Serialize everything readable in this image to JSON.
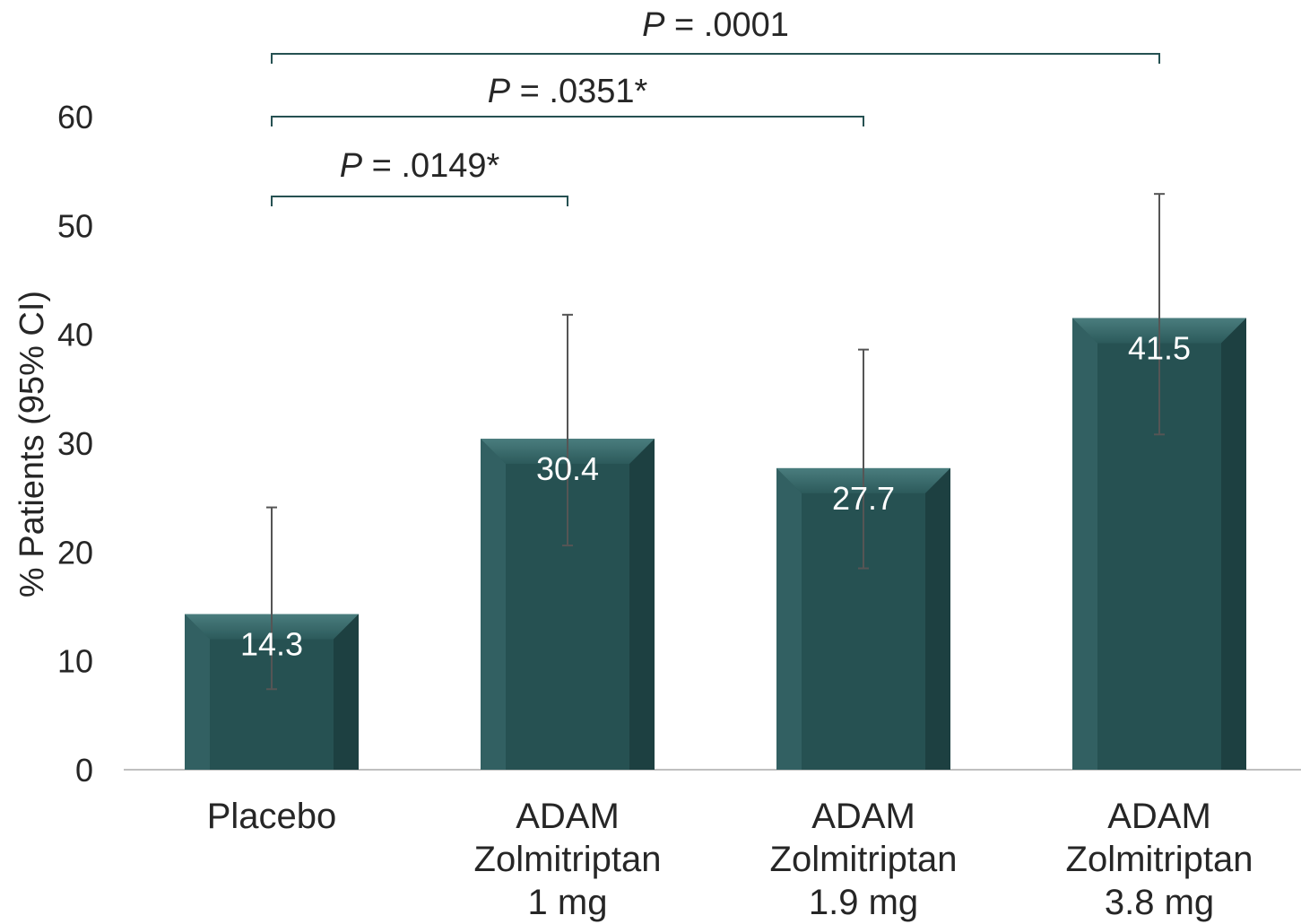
{
  "chart_data": {
    "type": "bar",
    "title": "",
    "ylabel": "% Patients (95% CI)",
    "xlabel": "",
    "ylim": [
      0,
      60
    ],
    "yticks": [
      0,
      10,
      20,
      30,
      40,
      50,
      60
    ],
    "categories": [
      [
        "Placebo"
      ],
      [
        "ADAM",
        "Zolmitriptan",
        "1 mg"
      ],
      [
        "ADAM",
        "Zolmitriptan",
        "1.9 mg"
      ],
      [
        "ADAM",
        "Zolmitriptan",
        "3.8 mg"
      ]
    ],
    "values": [
      14.3,
      30.4,
      27.7,
      41.5
    ],
    "value_labels": [
      "14.3",
      "30.4",
      "27.7",
      "41.5"
    ],
    "ci_lower": [
      7.4,
      20.6,
      18.5,
      30.8
    ],
    "ci_upper": [
      24.1,
      41.8,
      38.6,
      52.9
    ],
    "comparisons": [
      {
        "from": 0,
        "to": 1,
        "p_italic": "P",
        "p_text": " = .0149*"
      },
      {
        "from": 0,
        "to": 2,
        "p_italic": "P",
        "p_text": " = .0351*"
      },
      {
        "from": 0,
        "to": 3,
        "p_italic": "P",
        "p_text": " = .0001"
      }
    ],
    "grid": false,
    "legend": "none",
    "colors": {
      "bar": "#265152",
      "bar_light": "#3d6e6f",
      "bar_dark": "#173637",
      "bracket": "#265152",
      "error_bar": "#555555",
      "axis": "#bfbfbf",
      "text": "#262626",
      "bar_label": "#ffffff"
    }
  }
}
